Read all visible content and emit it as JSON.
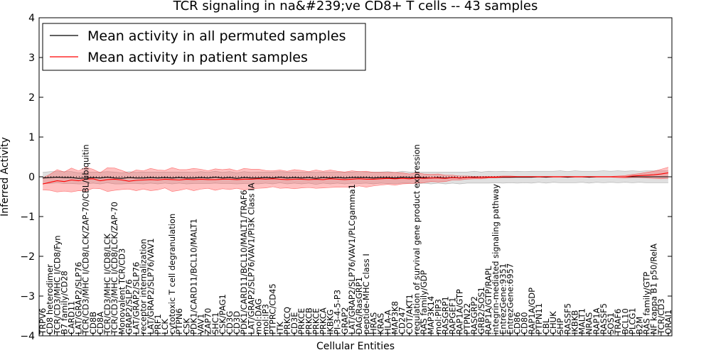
{
  "chart_data": {
    "type": "line",
    "title": "TCR signaling in na&#239;ve CD8+ T cells -- 43 samples",
    "xlabel": "Cellular Entities",
    "ylabel": "Inferred Activity",
    "ylim": [
      -4,
      4
    ],
    "yticks": [
      -4,
      -3,
      -2,
      -1,
      0,
      1,
      2,
      3,
      4
    ],
    "ytick_labels": [
      "−4",
      "−3",
      "−2",
      "−1",
      "0",
      "1",
      "2",
      "3",
      "4"
    ],
    "legend": {
      "placement": "top-left"
    },
    "categories": [
      "TRPV6",
      "CD8 heterodimer",
      "TCR/CD3/MHC I/CD8/Fyn",
      "B7 family/CD28",
      "CARD11",
      "LAT/GRAP2/SLP76",
      "TCR/CD3/MHC I/CD8/LCK/ZAP-70/CBL/ubiquitin",
      "CD8B",
      "CD8A",
      "TCR/CD3/MHC I/CD8/LCK",
      "TCR/CD3/MHC I/CD8/LCK/ZAP-70",
      "Monovalent TCR/CD3",
      "GRAP2/SLP76",
      "LAT/GRAP2/SLP76",
      "receptor internalization",
      "LAT/GRAP2/SLP76/VAV1",
      "PRF1",
      "LCK",
      "cytotoxic T cell degranulation",
      "PTPN6",
      "CSK",
      "PDK1/CARD11/BCL10/MALT1",
      "VAV1",
      "ZAP70",
      "SHC1",
      "CSK/PAG1",
      "CD3G",
      "CD3D",
      "PDK1/CARD11/BCL10/MALT1/TRAF6",
      "LAT/GRAP2/SLP76/VAV1/PI3K Class IA",
      "mol:DAG",
      "mol:IP3",
      "PTPRC/CD45",
      "ITK",
      "PRKCQ",
      "CD3E",
      "PRKCE",
      "PRKCB",
      "PRKCE",
      "PRKCA",
      "IKBKG",
      "PI-3-4-5-P3",
      "GRAP2",
      "LAT/GRAP2/SLP76/VAV1/PLCgamma1",
      "DAG/RasGRP1",
      "peptide-MHC class I",
      "HRAS",
      "KRAS",
      "HLA-A",
      "MAP3K8",
      "CD247",
      "COT/AKT1",
      "regulation of survival gene product expression",
      "RAS family/GDP",
      "MAP3K14",
      "mol:PIP3",
      "RASGRP1",
      "RAPGEF1",
      "RAP1A/GTP",
      "PTPN22",
      "RASGRP2",
      "GRB2/SOS1",
      "RAP1A/GTP/RAPL",
      "integrin-mediated signaling pathway",
      "EntrezGene:9351",
      "EntrezGene:6957",
      "CD86",
      "CD80",
      "RAP1A/GDP",
      "PTPN11",
      "CBL",
      "CHUK",
      "SHP",
      "RASSF5",
      "IKBKB",
      "MALT1",
      "NRAS",
      "RAP1A",
      "RASSF5",
      "SOS1",
      "TRAF6",
      "BCL10",
      "PLCG1",
      "B2M",
      "RAS family/GTP",
      "NF kappa B1 p50/RelA",
      "TCR/CD3",
      "ORAI1"
    ],
    "series": [
      {
        "name": "Mean activity in all permuted samples",
        "color": "#000000",
        "values": [
          -0.03,
          -0.02,
          -0.01,
          -0.02,
          -0.02,
          -0.04,
          -0.03,
          -0.02,
          -0.03,
          -0.01,
          -0.03,
          -0.04,
          -0.02,
          -0.03,
          -0.03,
          -0.02,
          -0.03,
          -0.02,
          -0.03,
          -0.02,
          -0.03,
          -0.03,
          -0.02,
          -0.03,
          -0.01,
          -0.03,
          -0.02,
          -0.04,
          -0.02,
          -0.03,
          -0.03,
          -0.02,
          -0.03,
          -0.01,
          -0.03,
          -0.02,
          -0.03,
          -0.02,
          -0.04,
          -0.02,
          -0.03,
          -0.02,
          -0.03,
          -0.02,
          -0.02,
          -0.02,
          -0.03,
          -0.02,
          -0.02,
          -0.03,
          -0.01,
          -0.02,
          -0.03,
          -0.02,
          -0.03,
          -0.02,
          -0.03,
          -0.02,
          -0.03,
          -0.02,
          -0.01,
          -0.02,
          -0.01,
          -0.01,
          -0.01,
          -0.01,
          -0.01,
          -0.01,
          -0.01,
          0.0,
          -0.01,
          0.0,
          0.0,
          -0.01,
          0.0,
          0.0,
          -0.01,
          0.0,
          0.0,
          0.0,
          0.0,
          0.0,
          0.0,
          0.0,
          0.0,
          0.0,
          0.0,
          0.0
        ],
        "band_halfwidth": [
          0.14,
          0.15,
          0.14,
          0.15,
          0.15,
          0.14,
          0.15,
          0.14,
          0.15,
          0.14,
          0.15,
          0.14,
          0.15,
          0.14,
          0.15,
          0.14,
          0.15,
          0.14,
          0.15,
          0.14,
          0.15,
          0.14,
          0.15,
          0.14,
          0.15,
          0.14,
          0.15,
          0.14,
          0.15,
          0.14,
          0.15,
          0.14,
          0.15,
          0.14,
          0.15,
          0.14,
          0.15,
          0.14,
          0.15,
          0.14,
          0.15,
          0.14,
          0.15,
          0.14,
          0.15,
          0.14,
          0.15,
          0.14,
          0.15,
          0.14,
          0.15,
          0.14,
          0.15,
          0.14,
          0.15,
          0.14,
          0.15,
          0.14,
          0.15,
          0.14,
          0.15,
          0.14,
          0.15,
          0.14,
          0.15,
          0.14,
          0.15,
          0.14,
          0.15,
          0.14,
          0.15,
          0.14,
          0.15,
          0.14,
          0.15,
          0.14,
          0.15,
          0.14,
          0.15,
          0.14,
          0.15,
          0.14,
          0.15,
          0.14,
          0.15,
          0.15,
          0.15,
          0.15
        ]
      },
      {
        "name": "Mean activity in patient samples",
        "color": "#ff0000",
        "values": [
          -0.18,
          -0.14,
          -0.1,
          -0.12,
          -0.08,
          -0.1,
          -0.06,
          -0.05,
          -0.1,
          -0.07,
          -0.06,
          -0.08,
          -0.11,
          -0.09,
          -0.08,
          -0.07,
          -0.08,
          -0.06,
          -0.07,
          -0.08,
          -0.06,
          -0.07,
          -0.06,
          -0.07,
          -0.07,
          -0.06,
          -0.06,
          -0.07,
          -0.06,
          -0.06,
          -0.05,
          -0.06,
          -0.05,
          -0.06,
          -0.07,
          -0.06,
          -0.06,
          -0.07,
          -0.06,
          -0.07,
          -0.05,
          -0.06,
          -0.07,
          -0.06,
          -0.05,
          -0.06,
          -0.06,
          -0.05,
          -0.04,
          -0.05,
          -0.04,
          -0.05,
          -0.03,
          -0.04,
          -0.03,
          -0.03,
          -0.04,
          -0.02,
          -0.03,
          -0.02,
          -0.02,
          -0.02,
          -0.01,
          -0.01,
          0.0,
          0.0,
          0.0,
          0.0,
          0.0,
          0.0,
          0.0,
          0.0,
          0.0,
          0.0,
          0.0,
          0.0,
          0.0,
          0.0,
          0.0,
          0.0,
          0.0,
          0.0,
          0.02,
          0.03,
          0.04,
          0.05,
          0.07,
          0.1
        ],
        "band_halfwidth": [
          0.15,
          0.2,
          0.28,
          0.24,
          0.3,
          0.25,
          0.3,
          0.24,
          0.2,
          0.3,
          0.28,
          0.24,
          0.2,
          0.26,
          0.23,
          0.28,
          0.25,
          0.22,
          0.3,
          0.26,
          0.24,
          0.28,
          0.25,
          0.22,
          0.27,
          0.24,
          0.26,
          0.22,
          0.27,
          0.25,
          0.24,
          0.22,
          0.2,
          0.23,
          0.21,
          0.24,
          0.22,
          0.2,
          0.23,
          0.21,
          0.22,
          0.2,
          0.19,
          0.21,
          0.18,
          0.2,
          0.17,
          0.16,
          0.15,
          0.16,
          0.14,
          0.12,
          0.13,
          0.11,
          0.09,
          0.1,
          0.08,
          0.06,
          0.05,
          0.04,
          0.03,
          0.03,
          0.02,
          0.02,
          0.02,
          0.02,
          0.01,
          0.01,
          0.01,
          0.01,
          0.01,
          0.01,
          0.01,
          0.01,
          0.01,
          0.01,
          0.01,
          0.01,
          0.01,
          0.01,
          0.02,
          0.03,
          0.04,
          0.05,
          0.07,
          0.09,
          0.12,
          0.14
        ]
      }
    ]
  }
}
